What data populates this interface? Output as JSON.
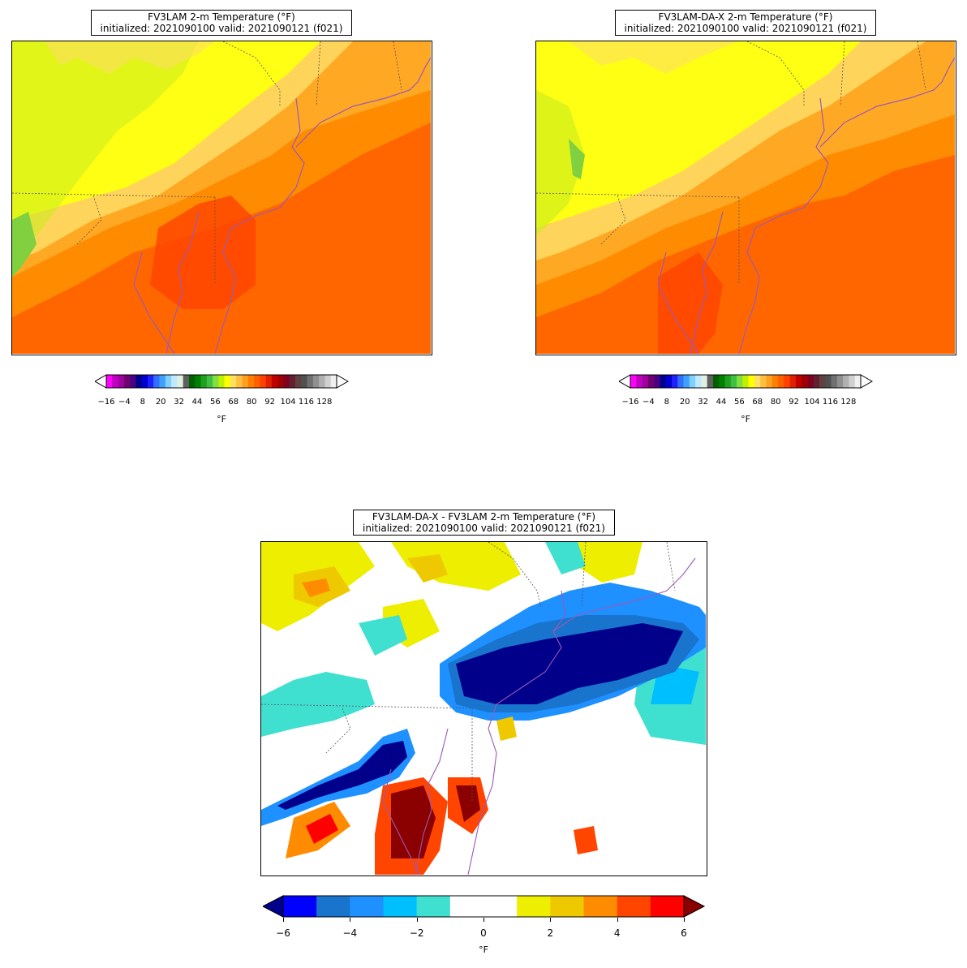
{
  "panels": [
    {
      "title_line1": "FV3LAM 2-m Temperature (°F)",
      "title_line2": "initialized: 2021090100 valid: 2021090121 (f021)",
      "colorbar_ticks": [
        "−16",
        "−4",
        "8",
        "20",
        "32",
        "44",
        "56",
        "68",
        "80",
        "92",
        "104",
        "116",
        "128"
      ],
      "colorbar_unit": "°F"
    },
    {
      "title_line1": "FV3LAM-DA-X 2-m Temperature (°F)",
      "title_line2": "initialized: 2021090100 valid: 2021090121 (f021)",
      "colorbar_ticks": [
        "−16",
        "−4",
        "8",
        "20",
        "32",
        "44",
        "56",
        "68",
        "80",
        "92",
        "104",
        "116",
        "128"
      ],
      "colorbar_unit": "°F"
    },
    {
      "title_line1": "FV3LAM-DA-X - FV3LAM 2-m Temperature (°F)",
      "title_line2": "initialized: 2021090100 valid: 2021090121 (f021)",
      "colorbar_ticks": [
        "−6",
        "−4",
        "−2",
        "0",
        "2",
        "4",
        "6"
      ],
      "colorbar_unit": "°F"
    }
  ],
  "temp_colorbar_colors": [
    "#ff00ff",
    "#c000c0",
    "#a000a0",
    "#700070",
    "#4b0082",
    "#000090",
    "#0000d0",
    "#2020ff",
    "#3070ff",
    "#40a0ff",
    "#80d0ff",
    "#c0e8ff",
    "#e0f0e0",
    "#606060",
    "#006000",
    "#008000",
    "#20a020",
    "#40c040",
    "#80e040",
    "#c0f000",
    "#ffff00",
    "#ffe060",
    "#ffc040",
    "#ffa020",
    "#ff8000",
    "#ff6000",
    "#ff4000",
    "#e02000",
    "#c00000",
    "#a00000",
    "#800020",
    "#602030",
    "#604040",
    "#505050",
    "#707070",
    "#909090",
    "#b0b0b0",
    "#d0d0d0",
    "#f0f0f0"
  ],
  "diff_colorbar_colors": [
    "#0000ff",
    "#1874cd",
    "#1e90ff",
    "#00bfff",
    "#40e0d0",
    "#ffffff",
    "#ffffff",
    "#eeee00",
    "#eec900",
    "#ff8c00",
    "#ff4500",
    "#ff0000"
  ],
  "diff_colorbar_extend_colors": {
    "min": "#00008b",
    "max": "#8b0000"
  },
  "map_colors": {
    "warm_dark": "#ff6600",
    "warm": "#ff8c00",
    "warm_light": "#ffa824",
    "tan": "#ffc14d",
    "light_tan": "#ffd45a",
    "yellow": "#ffff14",
    "lime": "#c8ec1c",
    "green": "#80d040",
    "red_orange": "#ff4400",
    "coast": "#9b59b6",
    "border": "#555555"
  }
}
